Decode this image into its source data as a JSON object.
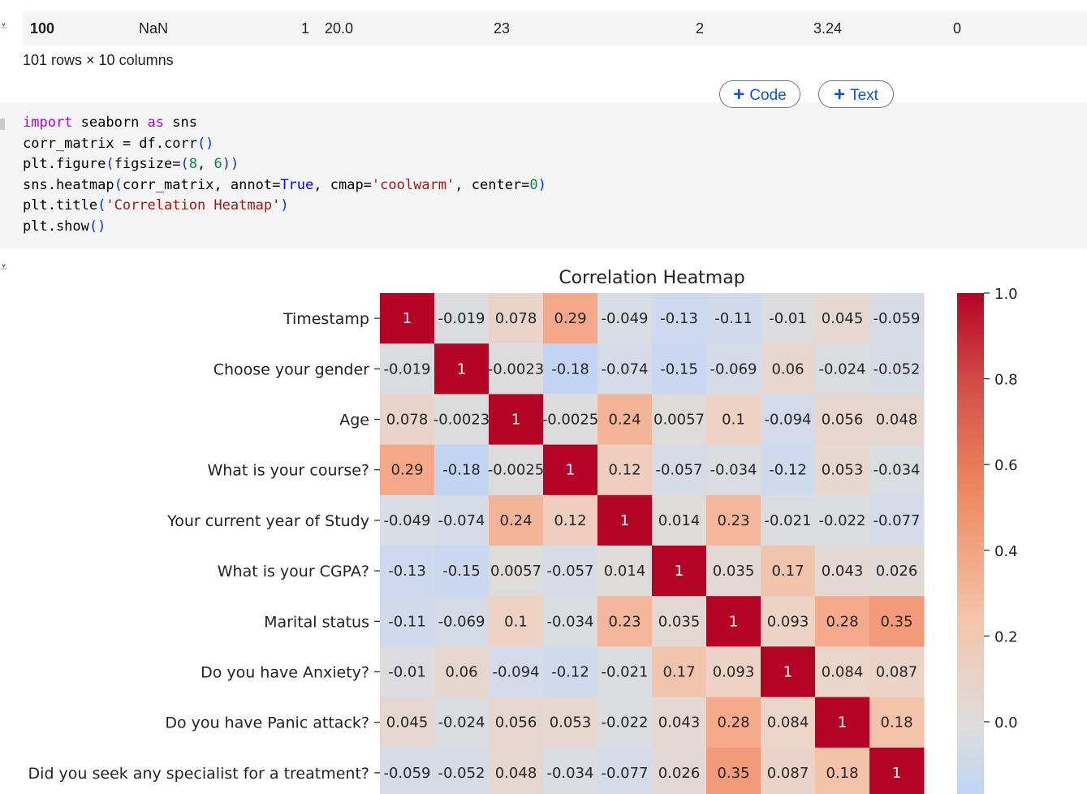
{
  "dataframe": {
    "last_row": {
      "index": "100",
      "cells": [
        "NaN",
        "1",
        "20.0",
        "23",
        "2",
        "3.24",
        "0"
      ]
    },
    "shape_text": "101 rows × 10 columns"
  },
  "toolbar": {
    "add_code_label": "Code",
    "add_text_label": "Text"
  },
  "code_cell": {
    "lines": [
      "import seaborn as sns",
      "corr_matrix = df.corr()",
      "plt.figure(figsize=(8, 6))",
      "sns.heatmap(corr_matrix, annot=True, cmap='coolwarm', center=0)",
      "plt.title('Correlation Heatmap')",
      "plt.show()"
    ]
  },
  "colors": {
    "cell_bg": "#f5f5f5",
    "accent": "#0b57d0",
    "keyword": "#af00db",
    "string": "#a31515",
    "number": "#098658"
  },
  "chart_data": {
    "type": "heatmap",
    "title": "Correlation Heatmap",
    "cmap": "coolwarm",
    "center": 0,
    "labels": [
      "Timestamp",
      "Choose your gender",
      "Age",
      "What is your course?",
      "Your current year of Study",
      "What is your CGPA?",
      "Marital status",
      "Do you have Anxiety?",
      "Do you have Panic attack?",
      "Did you seek any specialist for a treatment?"
    ],
    "matrix": [
      [
        "1",
        "-0.019",
        "0.078",
        "0.29",
        "-0.049",
        "-0.13",
        "-0.11",
        "-0.01",
        "0.045",
        "-0.059"
      ],
      [
        "-0.019",
        "1",
        "-0.0023",
        "-0.18",
        "-0.074",
        "-0.15",
        "-0.069",
        "0.06",
        "-0.024",
        "-0.052"
      ],
      [
        "0.078",
        "-0.0023",
        "1",
        "-0.0025",
        "0.24",
        "0.0057",
        "0.1",
        "-0.094",
        "0.056",
        "0.048"
      ],
      [
        "0.29",
        "-0.18",
        "-0.0025",
        "1",
        "0.12",
        "-0.057",
        "-0.034",
        "-0.12",
        "0.053",
        "-0.034"
      ],
      [
        "-0.049",
        "-0.074",
        "0.24",
        "0.12",
        "1",
        "0.014",
        "0.23",
        "-0.021",
        "-0.022",
        "-0.077"
      ],
      [
        "-0.13",
        "-0.15",
        "0.0057",
        "-0.057",
        "0.014",
        "1",
        "0.035",
        "0.17",
        "0.043",
        "0.026"
      ],
      [
        "-0.11",
        "-0.069",
        "0.1",
        "-0.034",
        "0.23",
        "0.035",
        "1",
        "0.093",
        "0.28",
        "0.35"
      ],
      [
        "-0.01",
        "0.06",
        "-0.094",
        "-0.12",
        "-0.021",
        "0.17",
        "0.093",
        "1",
        "0.084",
        "0.087"
      ],
      [
        "0.045",
        "-0.024",
        "0.056",
        "0.053",
        "-0.022",
        "0.043",
        "0.28",
        "0.084",
        "1",
        "0.18"
      ],
      [
        "-0.059",
        "-0.052",
        "0.048",
        "-0.034",
        "-0.077",
        "0.026",
        "0.35",
        "0.087",
        "0.18",
        "1"
      ]
    ],
    "colorbar_ticks": [
      "1.0",
      "0.8",
      "0.6",
      "0.4",
      "0.2",
      "0.0"
    ],
    "colorbar_range": [
      -0.2,
      1.0
    ]
  }
}
